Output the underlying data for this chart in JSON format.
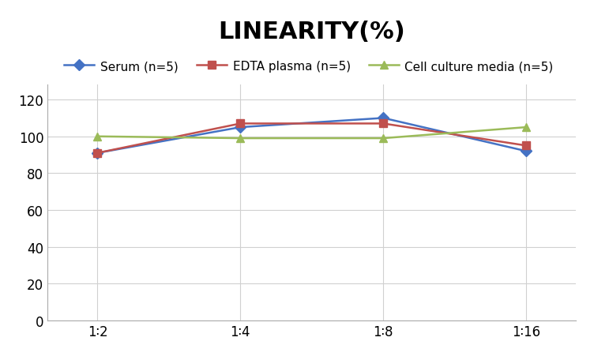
{
  "title": "LINEARITY(%)",
  "x_labels": [
    "1∶2",
    "1∶4",
    "1∶8",
    "1∶16"
  ],
  "x_positions": [
    0,
    1,
    2,
    3
  ],
  "series": [
    {
      "label": "Serum (n=5)",
      "color": "#4472C4",
      "marker": "D",
      "values": [
        91,
        105,
        110,
        92
      ]
    },
    {
      "label": "EDTA plasma (n=5)",
      "color": "#C0504D",
      "marker": "s",
      "values": [
        91,
        107,
        107,
        95
      ]
    },
    {
      "label": "Cell culture media (n=5)",
      "color": "#9BBB59",
      "marker": "^",
      "values": [
        100,
        99,
        99,
        105
      ]
    }
  ],
  "ylim": [
    0,
    128
  ],
  "yticks": [
    0,
    20,
    40,
    60,
    80,
    100,
    120
  ],
  "background_color": "#ffffff",
  "title_fontsize": 22,
  "legend_fontsize": 11,
  "tick_fontsize": 12,
  "grid_color": "#d0d0d0"
}
